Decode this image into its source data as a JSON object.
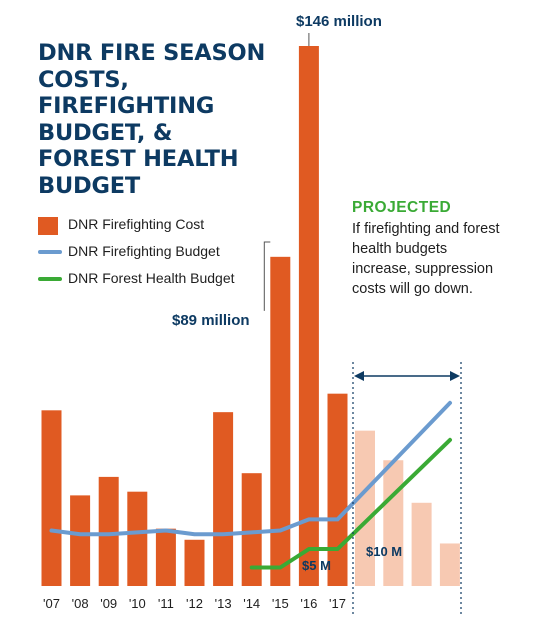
{
  "title": "DNR FIRE SEASON COSTS, FIREFIGHTING BUDGET, & FOREST HEALTH BUDGET",
  "legend": {
    "cost": "DNR Firefighting Cost",
    "budget": "DNR Firefighting Budget",
    "forest": "DNR Forest Health Budget"
  },
  "projected": {
    "label": "PROJECTED",
    "text": "If firefighting and forest health budgets increase, suppression costs will go down."
  },
  "annotations": {
    "peak": "$146 million",
    "y2015": "$89 million",
    "five": "$5 M",
    "ten": "$10 M"
  },
  "colors": {
    "cost": "#e05a22",
    "projected_cost": "#f7c9b2",
    "budget": "#6b9bcf",
    "forest": "#3aaa35",
    "navy": "#0d3a62"
  },
  "chart_data": {
    "type": "bar",
    "categories": [
      "'07",
      "'08",
      "'09",
      "'10",
      "'11",
      "'12",
      "'13",
      "'14",
      "'15",
      "'16",
      "'17"
    ],
    "ylim": [
      0,
      146
    ],
    "series": [
      {
        "name": "DNR Firefighting Cost",
        "type": "bar",
        "values": [
          47.5,
          24.5,
          29.5,
          25.5,
          15.5,
          12.5,
          47,
          30.5,
          89,
          146,
          52
        ]
      },
      {
        "name": "DNR Firefighting Budget",
        "type": "line",
        "values": [
          15,
          14,
          14,
          14.5,
          15,
          14,
          14,
          14.5,
          15,
          18,
          18
        ]
      },
      {
        "name": "DNR Forest Health Budget",
        "type": "line",
        "values": [
          null,
          null,
          null,
          null,
          null,
          null,
          null,
          5,
          5,
          10,
          10
        ]
      }
    ],
    "projected": {
      "bars": [
        42,
        34,
        22.5,
        11.5
      ],
      "budget_end": 49.5,
      "forest_end": 39.5
    }
  }
}
